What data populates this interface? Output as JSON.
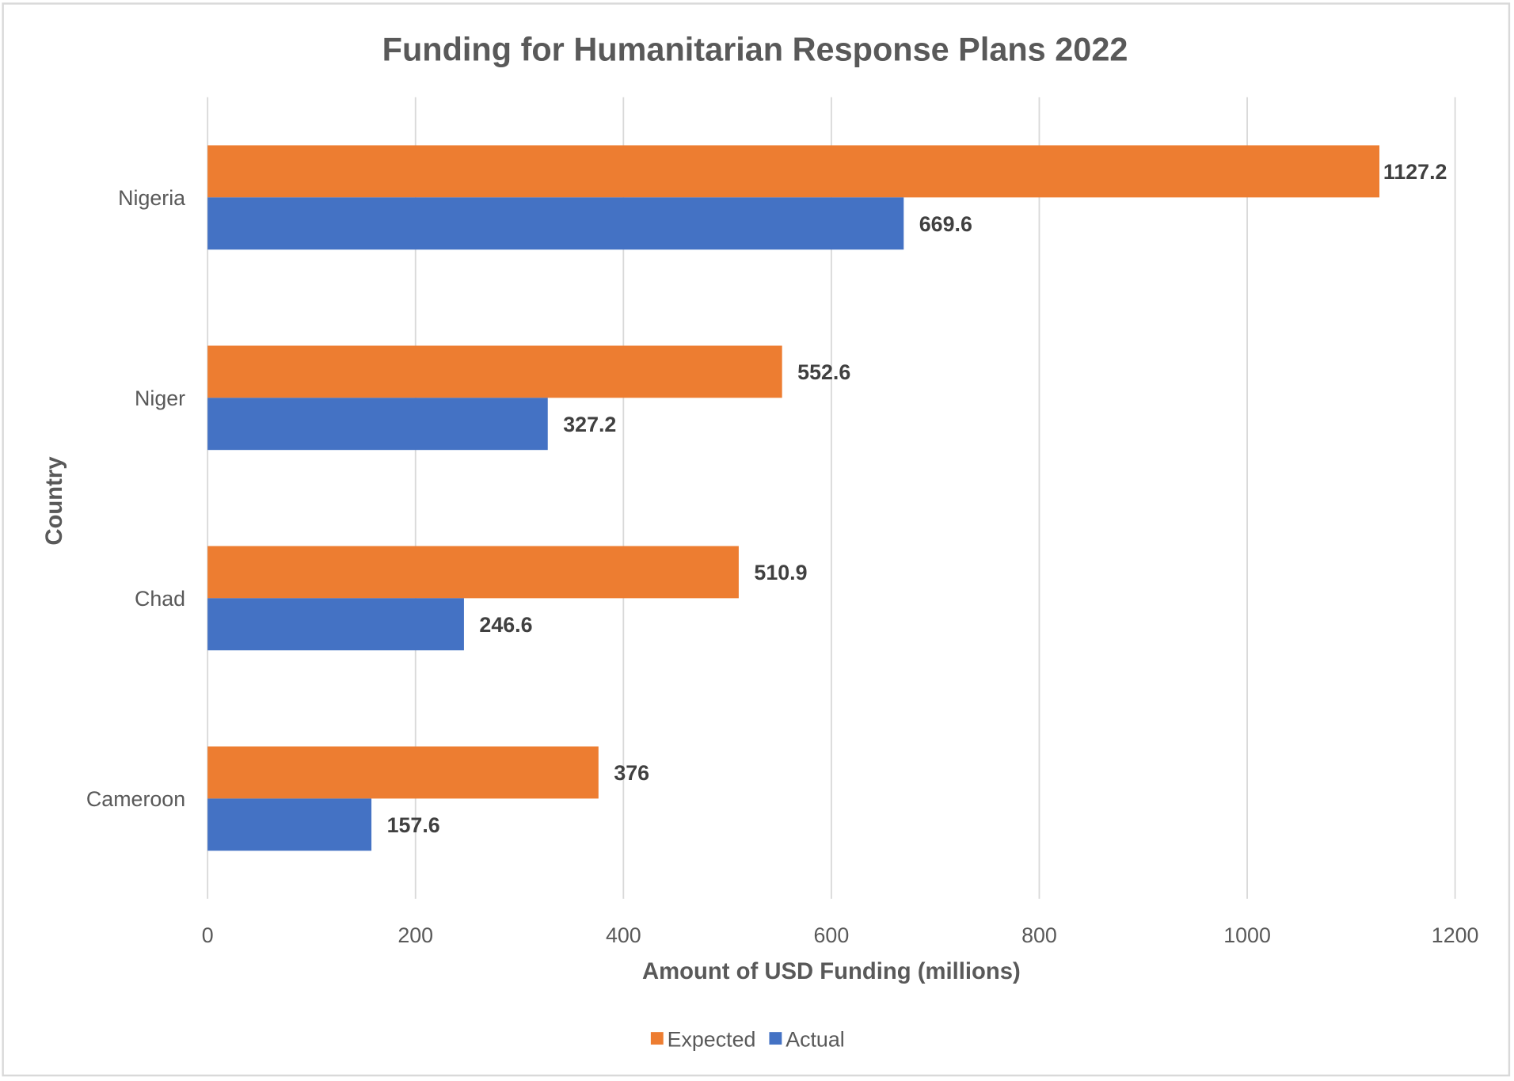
{
  "chart_data": {
    "type": "bar",
    "orientation": "horizontal",
    "title": "Funding for Humanitarian Response Plans 2022",
    "xlabel": "Amount of USD Funding (millions)",
    "ylabel": "Country",
    "categories": [
      "Nigeria",
      "Niger",
      "Chad",
      "Cameroon"
    ],
    "series": [
      {
        "name": "Expected",
        "color": "#ED7D31",
        "values": [
          1127.2,
          552.6,
          510.9,
          376
        ]
      },
      {
        "name": "Actual",
        "color": "#4472C4",
        "values": [
          669.6,
          327.2,
          246.6,
          157.6
        ]
      }
    ],
    "xlim": [
      0,
      1200
    ],
    "xticks": [
      0,
      200,
      400,
      600,
      800,
      1000,
      1200
    ],
    "grid": "vertical",
    "legend": "bottom",
    "data_labels": true
  }
}
